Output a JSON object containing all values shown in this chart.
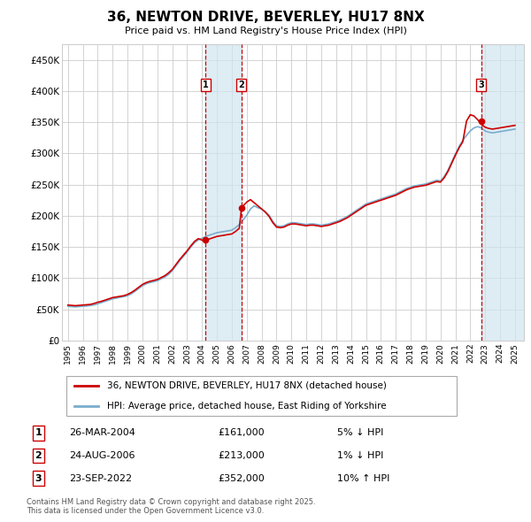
{
  "title": "36, NEWTON DRIVE, BEVERLEY, HU17 8NX",
  "subtitle": "Price paid vs. HM Land Registry's House Price Index (HPI)",
  "ylabel_ticks": [
    "£0",
    "£50K",
    "£100K",
    "£150K",
    "£200K",
    "£250K",
    "£300K",
    "£350K",
    "£400K",
    "£450K"
  ],
  "ylim": [
    0,
    475000
  ],
  "xlim_start": 1994.6,
  "xlim_end": 2025.6,
  "background_color": "#ffffff",
  "grid_color": "#cccccc",
  "hpi_color": "#7aadcc",
  "price_color": "#cc0000",
  "sale_color": "#cc0000",
  "shade_color": "#d0e5f0",
  "transactions": [
    {
      "date_num": 2004.23,
      "price": 161000,
      "label": "1"
    },
    {
      "date_num": 2006.65,
      "price": 213000,
      "label": "2"
    },
    {
      "date_num": 2022.73,
      "price": 352000,
      "label": "3"
    }
  ],
  "transaction_table": [
    {
      "num": "1",
      "date": "26-MAR-2004",
      "price": "£161,000",
      "pct": "5% ↓ HPI"
    },
    {
      "num": "2",
      "date": "24-AUG-2006",
      "price": "£213,000",
      "pct": "1% ↓ HPI"
    },
    {
      "num": "3",
      "date": "23-SEP-2022",
      "price": "£352,000",
      "pct": "10% ↑ HPI"
    }
  ],
  "legend_entries": [
    "36, NEWTON DRIVE, BEVERLEY, HU17 8NX (detached house)",
    "HPI: Average price, detached house, East Riding of Yorkshire"
  ],
  "footer": "Contains HM Land Registry data © Crown copyright and database right 2025.\nThis data is licensed under the Open Government Licence v3.0.",
  "hpi_data_x": [
    1995.0,
    1995.25,
    1995.5,
    1995.75,
    1996.0,
    1996.25,
    1996.5,
    1996.75,
    1997.0,
    1997.25,
    1997.5,
    1997.75,
    1998.0,
    1998.25,
    1998.5,
    1998.75,
    1999.0,
    1999.25,
    1999.5,
    1999.75,
    2000.0,
    2000.25,
    2000.5,
    2000.75,
    2001.0,
    2001.25,
    2001.5,
    2001.75,
    2002.0,
    2002.25,
    2002.5,
    2002.75,
    2003.0,
    2003.25,
    2003.5,
    2003.75,
    2004.0,
    2004.25,
    2004.5,
    2004.75,
    2005.0,
    2005.25,
    2005.5,
    2005.75,
    2006.0,
    2006.25,
    2006.5,
    2006.75,
    2007.0,
    2007.25,
    2007.5,
    2007.75,
    2008.0,
    2008.25,
    2008.5,
    2008.75,
    2009.0,
    2009.25,
    2009.5,
    2009.75,
    2010.0,
    2010.25,
    2010.5,
    2010.75,
    2011.0,
    2011.25,
    2011.5,
    2011.75,
    2012.0,
    2012.25,
    2012.5,
    2012.75,
    2013.0,
    2013.25,
    2013.5,
    2013.75,
    2014.0,
    2014.25,
    2014.5,
    2014.75,
    2015.0,
    2015.25,
    2015.5,
    2015.75,
    2016.0,
    2016.25,
    2016.5,
    2016.75,
    2017.0,
    2017.25,
    2017.5,
    2017.75,
    2018.0,
    2018.25,
    2018.5,
    2018.75,
    2019.0,
    2019.25,
    2019.5,
    2019.75,
    2020.0,
    2020.25,
    2020.5,
    2020.75,
    2021.0,
    2021.25,
    2021.5,
    2021.75,
    2022.0,
    2022.25,
    2022.5,
    2022.75,
    2023.0,
    2023.25,
    2023.5,
    2023.75,
    2024.0,
    2024.25,
    2024.5,
    2024.75,
    2025.0
  ],
  "hpi_data_y": [
    55000,
    54500,
    54200,
    54500,
    55000,
    55500,
    56200,
    57200,
    59000,
    61000,
    63000,
    65000,
    67000,
    68000,
    69500,
    70500,
    72000,
    75000,
    79000,
    83500,
    88000,
    91000,
    93000,
    94500,
    96000,
    99000,
    102000,
    106000,
    112000,
    120000,
    128000,
    135000,
    142000,
    150000,
    157000,
    161500,
    164000,
    167000,
    169000,
    171000,
    173000,
    174000,
    175000,
    176000,
    177000,
    181000,
    186000,
    193000,
    201000,
    211000,
    216000,
    213000,
    211000,
    206000,
    201000,
    191000,
    184000,
    183000,
    184000,
    187000,
    189000,
    189000,
    188000,
    187000,
    186000,
    187000,
    187000,
    186000,
    185000,
    186000,
    187000,
    189000,
    191000,
    193000,
    196000,
    199000,
    203000,
    207000,
    211000,
    215000,
    219000,
    221000,
    223000,
    225000,
    227000,
    229000,
    231000,
    233000,
    235000,
    238000,
    241000,
    244000,
    246000,
    248000,
    249000,
    250000,
    251000,
    253000,
    255000,
    257000,
    256000,
    263000,
    273000,
    286000,
    299000,
    311000,
    321000,
    329000,
    336000,
    341000,
    343000,
    341000,
    336000,
    334000,
    333000,
    334000,
    335000,
    336000,
    337000,
    338000,
    339000
  ],
  "price_data_x": [
    1995.0,
    1995.25,
    1995.5,
    1995.75,
    1996.0,
    1996.25,
    1996.5,
    1996.75,
    1997.0,
    1997.25,
    1997.5,
    1997.75,
    1998.0,
    1998.25,
    1998.5,
    1998.75,
    1999.0,
    1999.25,
    1999.5,
    1999.75,
    2000.0,
    2000.25,
    2000.5,
    2000.75,
    2001.0,
    2001.25,
    2001.5,
    2001.75,
    2002.0,
    2002.25,
    2002.5,
    2002.75,
    2003.0,
    2003.25,
    2003.5,
    2003.75,
    2004.0,
    2004.23,
    2004.5,
    2004.75,
    2005.0,
    2005.25,
    2005.5,
    2005.75,
    2006.0,
    2006.25,
    2006.5,
    2006.65,
    2007.0,
    2007.25,
    2007.5,
    2007.75,
    2008.0,
    2008.25,
    2008.5,
    2008.75,
    2009.0,
    2009.25,
    2009.5,
    2009.75,
    2010.0,
    2010.25,
    2010.5,
    2010.75,
    2011.0,
    2011.25,
    2011.5,
    2011.75,
    2012.0,
    2012.25,
    2012.5,
    2012.75,
    2013.0,
    2013.25,
    2013.5,
    2013.75,
    2014.0,
    2014.25,
    2014.5,
    2014.75,
    2015.0,
    2015.25,
    2015.5,
    2015.75,
    2016.0,
    2016.25,
    2016.5,
    2016.75,
    2017.0,
    2017.25,
    2017.5,
    2017.75,
    2018.0,
    2018.25,
    2018.5,
    2018.75,
    2019.0,
    2019.25,
    2019.5,
    2019.75,
    2020.0,
    2020.25,
    2020.5,
    2020.75,
    2021.0,
    2021.25,
    2021.5,
    2021.75,
    2022.0,
    2022.25,
    2022.5,
    2022.73,
    2023.0,
    2023.25,
    2023.5,
    2023.75,
    2024.0,
    2024.25,
    2024.5,
    2024.75,
    2025.0
  ],
  "price_data_y": [
    57000,
    56500,
    56000,
    56500,
    57000,
    57500,
    58000,
    59500,
    61500,
    63000,
    65000,
    67000,
    69000,
    70000,
    71000,
    72000,
    74000,
    77000,
    81000,
    85500,
    90000,
    93000,
    95000,
    96500,
    98000,
    101000,
    104000,
    108500,
    114000,
    122000,
    130000,
    137000,
    144000,
    152000,
    159000,
    163500,
    161000,
    161000,
    163000,
    165000,
    167000,
    168000,
    169000,
    170000,
    171000,
    175000,
    180000,
    213000,
    222000,
    226000,
    221000,
    216000,
    211000,
    206000,
    199000,
    189000,
    182000,
    181000,
    182000,
    185000,
    187000,
    187000,
    186000,
    185000,
    184000,
    185000,
    185000,
    184000,
    183000,
    184000,
    185000,
    187000,
    189000,
    191000,
    194000,
    197000,
    201000,
    205000,
    209000,
    213000,
    217000,
    219000,
    221000,
    223000,
    225000,
    227000,
    229000,
    231000,
    233000,
    236000,
    239000,
    242000,
    244000,
    246000,
    247000,
    248000,
    249000,
    251000,
    253000,
    255000,
    254000,
    261000,
    271000,
    284000,
    297000,
    309000,
    319000,
    352000,
    362000,
    360000,
    354000,
    347000,
    342000,
    340000,
    339000,
    340000,
    341000,
    342000,
    343000,
    344000,
    345000
  ]
}
